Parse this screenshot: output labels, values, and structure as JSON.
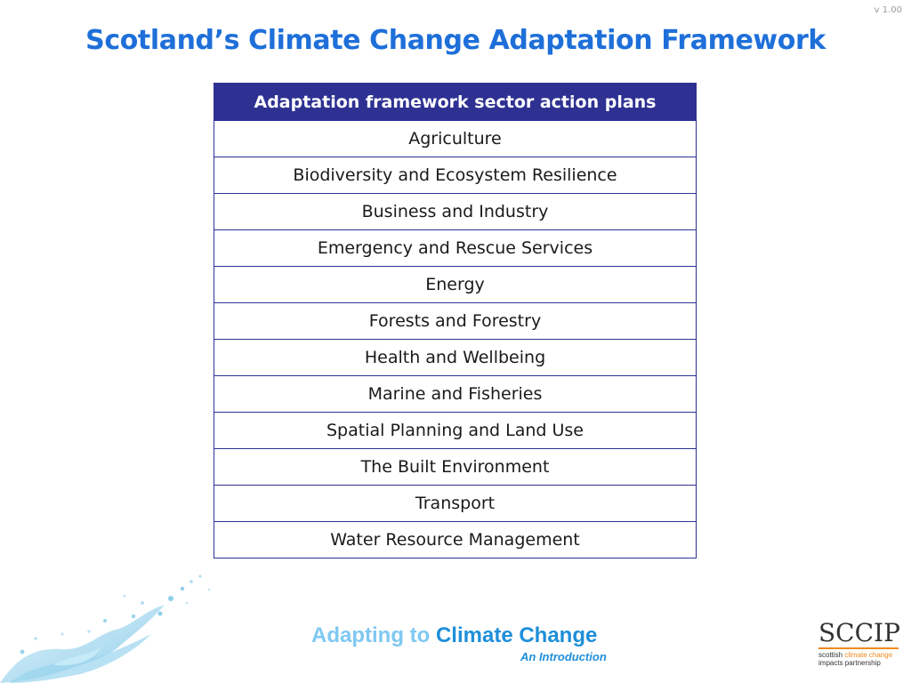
{
  "version": "v 1.00",
  "title": "Scotland’s Climate Change Adaptation Framework",
  "table": {
    "header": "Adaptation framework sector action plans",
    "rows": [
      "Agriculture",
      "Biodiversity and Ecosystem Resilience",
      "Business and Industry",
      "Emergency and Rescue Services",
      "Energy",
      "Forests and Forestry",
      "Health and Wellbeing",
      "Marine and Fisheries",
      "Spatial Planning and Land Use",
      "The Built Environment",
      "Transport",
      "Water Resource Management"
    ]
  },
  "footer": {
    "tagline_part1": "Adapting to ",
    "tagline_part2": "Climate Change",
    "subtitle": "An Introduction",
    "logo_mark": "SCCIP",
    "logo_line1_a": "scottish ",
    "logo_line1_b": "climate change",
    "logo_line2": "impacts partnership"
  },
  "colors": {
    "title": "#1e6fd9",
    "header_bg": "#2e3192",
    "accent_orange": "#f08a1c"
  }
}
